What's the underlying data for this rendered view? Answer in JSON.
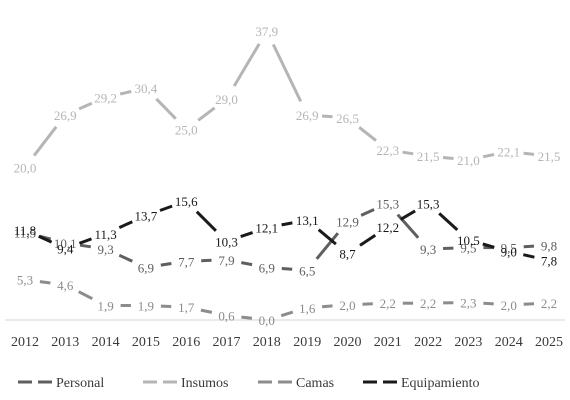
{
  "chart_data": {
    "type": "line",
    "x": [
      "2012",
      "2013",
      "2014",
      "2015",
      "2016",
      "2017",
      "2018",
      "2019",
      "2020",
      "2021",
      "2022",
      "2023",
      "2024",
      "2025"
    ],
    "series": [
      {
        "name": "Personal",
        "color": "#5f5f5f",
        "dash": true,
        "values": [
          11.5,
          10.1,
          9.3,
          6.9,
          7.7,
          7.9,
          6.9,
          6.5,
          12.9,
          15.3,
          9.3,
          9.5,
          9.5,
          9.8
        ],
        "labels": [
          "11,5",
          "10,1",
          "9,3",
          "6,9",
          "7,7",
          "7,9",
          "6,9",
          "6,5",
          "12,9",
          "15,3",
          "9,3",
          "9,5",
          "9,5",
          "9,8"
        ]
      },
      {
        "name": "Insumos",
        "color": "#b5b5b5",
        "dash": true,
        "values": [
          20.0,
          26.9,
          29.2,
          30.4,
          25.0,
          29.0,
          37.9,
          26.9,
          26.5,
          22.3,
          21.5,
          21.0,
          22.1,
          21.5
        ],
        "labels": [
          "20,0",
          "26,9",
          "29,2",
          "30,4",
          "25,0",
          "29,0",
          "37,9",
          "26,9",
          "26,5",
          "22,3",
          "21,5",
          "21,0",
          "22,1",
          "21,5"
        ]
      },
      {
        "name": "Camas",
        "color": "#8c8c8c",
        "dash": true,
        "values": [
          5.3,
          4.6,
          1.9,
          1.9,
          1.7,
          0.6,
          0.0,
          1.6,
          2.0,
          2.2,
          2.2,
          2.3,
          2.0,
          2.2
        ],
        "labels": [
          "5,3",
          "4,6",
          "1,9",
          "1,9",
          "1,7",
          "0,6",
          "0,0",
          "1,6",
          "2,0",
          "2,2",
          "2,2",
          "2,3",
          "2,0",
          "2,2"
        ]
      },
      {
        "name": "Equipamiento",
        "color": "#1a1a1a",
        "dash": true,
        "values": [
          11.8,
          9.4,
          11.3,
          13.7,
          15.6,
          10.3,
          12.1,
          13.1,
          8.7,
          12.2,
          15.3,
          10.5,
          9.0,
          7.8
        ],
        "labels": [
          "11,8",
          "9,4",
          "11,3",
          "13,7",
          "15,6",
          "10,3",
          "12,1",
          "13,1",
          "8,7",
          "12,2",
          "15,3",
          "10,5",
          "9,0",
          "7,8"
        ]
      }
    ],
    "title": "",
    "xlabel": "",
    "ylabel": "",
    "ylim": [
      0,
      40
    ],
    "grid": false,
    "legend_position": "bottom"
  }
}
